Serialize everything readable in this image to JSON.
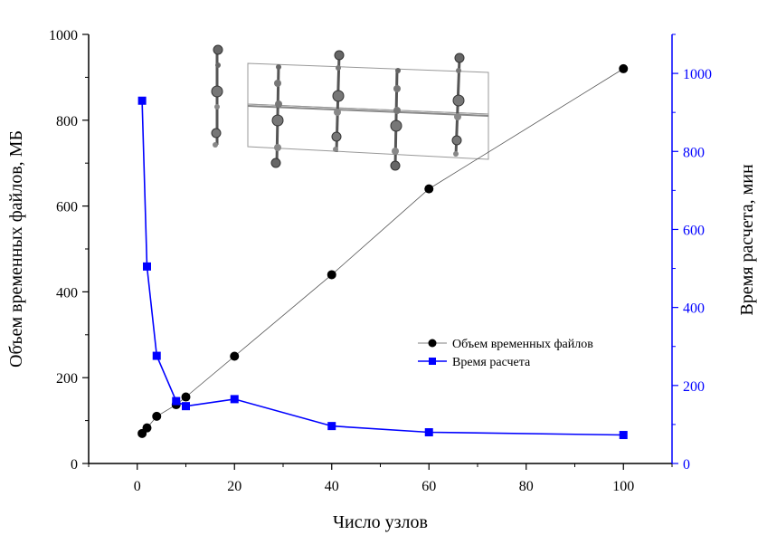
{
  "chart_data": {
    "type": "line",
    "title": "",
    "xlabel": "Число узлов",
    "ylabel_left": "Объем временных файлов, МБ",
    "ylabel_right": "Время расчета, мин",
    "xlim": [
      -10,
      110
    ],
    "ylim_left": [
      0,
      1000
    ],
    "ylim_right": [
      0,
      1100
    ],
    "x_ticks": [
      0,
      20,
      40,
      60,
      80,
      100
    ],
    "x_tick_labels": [
      "0",
      "20",
      "40",
      "60",
      "80",
      "100"
    ],
    "y_left_ticks": [
      0,
      200,
      400,
      600,
      800,
      1000
    ],
    "y_left_tick_labels": [
      "0",
      "200",
      "400",
      "600",
      "800",
      "1000"
    ],
    "y_right_ticks": [
      0,
      200,
      400,
      600,
      800,
      1000
    ],
    "y_right_tick_labels": [
      "0",
      "200",
      "400",
      "600",
      "800",
      "1000"
    ],
    "grid": false,
    "legend_position": "center-right",
    "series": [
      {
        "name": "Объем временных файлов",
        "axis": "left",
        "marker": "circle",
        "color": "#000000",
        "line_color": "#555555",
        "x": [
          1,
          2,
          4,
          8,
          10,
          20,
          40,
          60,
          100
        ],
        "y": [
          70,
          83,
          110,
          137,
          155,
          250,
          440,
          640,
          920
        ]
      },
      {
        "name": "Время расчета",
        "axis": "right",
        "marker": "square",
        "color": "#0000ff",
        "line_color": "#0000ff",
        "x": [
          1,
          2,
          4,
          8,
          10,
          20,
          40,
          60,
          100
        ],
        "y": [
          930,
          505,
          276,
          160,
          147,
          165,
          96,
          80,
          73
        ]
      }
    ],
    "inset": {
      "description_icon": "mesh-structure-illustration"
    },
    "colors": {
      "left_axis": "#000000",
      "right_axis": "#0000ff"
    }
  }
}
